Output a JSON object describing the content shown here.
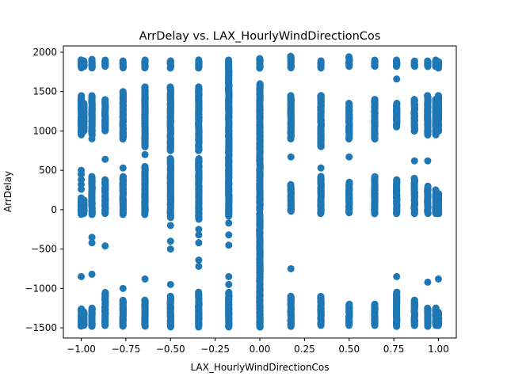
{
  "chart_data": {
    "type": "scatter",
    "title": "ArrDelay vs. LAX_HourlyWindDirectionCos",
    "xlabel": "LAX_HourlyWindDirectionCos",
    "ylabel": "ArrDelay",
    "xlim": [
      -1.1,
      1.1
    ],
    "ylim": [
      -1630,
      2080
    ],
    "xticks": [
      -1.0,
      -0.75,
      -0.5,
      -0.25,
      0.0,
      0.25,
      0.5,
      0.75,
      1.0
    ],
    "xtick_labels": [
      "−1.00",
      "−0.75",
      "−0.50",
      "−0.25",
      "0.00",
      "0.25",
      "0.50",
      "0.75",
      "1.00"
    ],
    "yticks": [
      -1500,
      -1000,
      -500,
      0,
      500,
      1000,
      1500,
      2000
    ],
    "ytick_labels": [
      "−1500",
      "−1000",
      "−500",
      "0",
      "500",
      "1000",
      "1500",
      "2000"
    ],
    "grid": false,
    "marker_color": "#1f77b4",
    "columns": [
      {
        "x": -1.0,
        "bands": [
          [
            -1480,
            -1260
          ],
          [
            -60,
            150
          ],
          [
            950,
            1450
          ],
          [
            1800,
            1900
          ]
        ],
        "extra": [
          -850,
          260,
          320,
          380,
          450,
          500
        ]
      },
      {
        "x": -0.985,
        "bands": [
          [
            -1470,
            -1300
          ],
          [
            -50,
            120
          ],
          [
            1000,
            1350
          ],
          [
            1820,
            1890
          ]
        ],
        "extra": []
      },
      {
        "x": -0.94,
        "bands": [
          [
            -1480,
            -1250
          ],
          [
            -60,
            420
          ],
          [
            950,
            1450
          ],
          [
            1800,
            1910
          ]
        ],
        "extra": [
          -820,
          -420,
          -350,
          900
        ]
      },
      {
        "x": -0.866,
        "bands": [
          [
            -1470,
            -1050
          ],
          [
            -50,
            380
          ],
          [
            1000,
            1400
          ],
          [
            1820,
            1900
          ]
        ],
        "extra": [
          -460,
          640
        ]
      },
      {
        "x": -0.766,
        "bands": [
          [
            -1480,
            -1150
          ],
          [
            -60,
            420
          ],
          [
            900,
            1500
          ],
          [
            1800,
            1890
          ]
        ],
        "extra": [
          -1000,
          530
        ]
      },
      {
        "x": -0.643,
        "bands": [
          [
            -1480,
            -1150
          ],
          [
            -60,
            550
          ],
          [
            800,
            1560
          ],
          [
            1800,
            1900
          ]
        ],
        "extra": [
          -880,
          700
        ]
      },
      {
        "x": -0.5,
        "bands": [
          [
            -1490,
            -1100
          ],
          [
            -100,
            650
          ],
          [
            750,
            1560
          ],
          [
            1800,
            1890
          ]
        ],
        "extra": [
          -1150,
          -950,
          -500,
          -400,
          -200
        ]
      },
      {
        "x": -0.342,
        "bands": [
          [
            -1490,
            -1050
          ],
          [
            -120,
            650
          ],
          [
            750,
            1560
          ],
          [
            1800,
            1900
          ]
        ],
        "extra": [
          -720,
          -640,
          -420,
          -320,
          -250
        ]
      },
      {
        "x": -0.174,
        "bands": [
          [
            -1490,
            -1050
          ],
          [
            -80,
            1900
          ]
        ],
        "extra": [
          -950,
          -850,
          -450,
          -320,
          -170
        ]
      },
      {
        "x": 0.0,
        "bands": [
          [
            -1490,
            -50
          ],
          [
            0,
            1600
          ],
          [
            1800,
            1920
          ]
        ],
        "extra": []
      },
      {
        "x": 0.174,
        "bands": [
          [
            -1480,
            -1100
          ],
          [
            -20,
            320
          ],
          [
            900,
            1450
          ],
          [
            1800,
            1950
          ]
        ],
        "extra": [
          -750,
          670
        ]
      },
      {
        "x": 0.342,
        "bands": [
          [
            -1470,
            -1100
          ],
          [
            -50,
            420
          ],
          [
            800,
            1450
          ],
          [
            1800,
            1890
          ]
        ],
        "extra": [
          530
        ]
      },
      {
        "x": 0.5,
        "bands": [
          [
            -1470,
            -1200
          ],
          [
            -40,
            350
          ],
          [
            900,
            1350
          ],
          [
            1820,
            1940
          ]
        ],
        "extra": [
          670
        ]
      },
      {
        "x": 0.643,
        "bands": [
          [
            -1470,
            -1200
          ],
          [
            -50,
            420
          ],
          [
            900,
            1400
          ],
          [
            1820,
            1900
          ]
        ],
        "extra": []
      },
      {
        "x": 0.766,
        "bands": [
          [
            -1480,
            -1050
          ],
          [
            -50,
            380
          ],
          [
            1050,
            1350
          ],
          [
            1820,
            1900
          ]
        ],
        "extra": [
          -850,
          1660
        ]
      },
      {
        "x": 0.866,
        "bands": [
          [
            -1470,
            -1150
          ],
          [
            -50,
            400
          ],
          [
            1000,
            1400
          ],
          [
            1820,
            1890
          ]
        ],
        "extra": [
          620
        ]
      },
      {
        "x": 0.94,
        "bands": [
          [
            -1480,
            -1250
          ],
          [
            -50,
            300
          ],
          [
            950,
            1450
          ],
          [
            1820,
            1890
          ]
        ],
        "extra": [
          -920,
          620
        ]
      },
      {
        "x": 0.985,
        "bands": [
          [
            -1470,
            -1250
          ],
          [
            -50,
            250
          ],
          [
            950,
            1400
          ],
          [
            1820,
            1900
          ]
        ],
        "extra": []
      },
      {
        "x": 1.0,
        "bands": [
          [
            -1470,
            -1300
          ],
          [
            -50,
            200
          ],
          [
            1000,
            1450
          ],
          [
            1800,
            1880
          ]
        ],
        "extra": [
          -880
        ]
      }
    ]
  }
}
